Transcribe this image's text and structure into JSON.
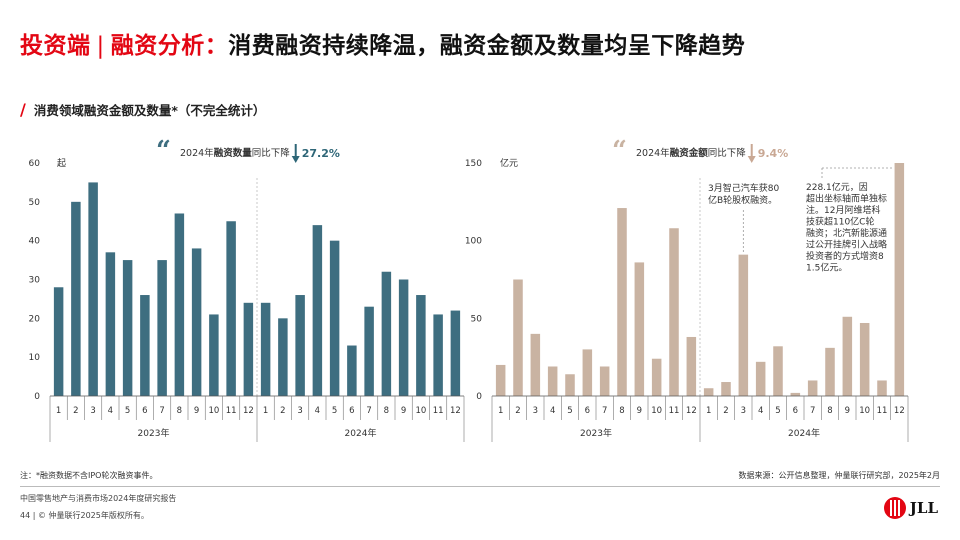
{
  "header": {
    "title_red": "投资端",
    "title_sep": "|",
    "title_red2": "融资分析：",
    "title_rest": "消费融资持续降温，融资金额及数量均呈下降趋势",
    "subtitle": "消费领域融资金额及数量*（不完全统计）"
  },
  "colors": {
    "accent_red": "#e30613",
    "count_bar": "#3e6e80",
    "amount_bar": "#c9b3a2",
    "count_highlight": "#2e6677",
    "amount_highlight": "#c9a894"
  },
  "chart_data": [
    {
      "type": "bar",
      "unit_label": "起",
      "ylim": [
        0,
        60
      ],
      "yticks": [
        0,
        10,
        20,
        30,
        40,
        50,
        60
      ],
      "categories": [
        "1",
        "2",
        "3",
        "4",
        "5",
        "6",
        "7",
        "8",
        "9",
        "10",
        "11",
        "12",
        "1",
        "2",
        "3",
        "4",
        "5",
        "6",
        "7",
        "8",
        "9",
        "10",
        "11",
        "12"
      ],
      "groups": [
        "2023年",
        "2024年"
      ],
      "values": [
        28,
        50,
        55,
        37,
        35,
        26,
        35,
        47,
        38,
        21,
        45,
        24,
        24,
        20,
        26,
        44,
        40,
        13,
        23,
        32,
        30,
        26,
        21,
        22
      ],
      "callout": {
        "prefix": "2024年",
        "bold": "融资数量",
        "suffix": "同比下降",
        "change": "27.2%"
      }
    },
    {
      "type": "bar",
      "unit_label": "亿元",
      "ylim": [
        0,
        150
      ],
      "yticks": [
        0,
        50,
        100,
        150
      ],
      "categories": [
        "1",
        "2",
        "3",
        "4",
        "5",
        "6",
        "7",
        "8",
        "9",
        "10",
        "11",
        "12",
        "1",
        "2",
        "3",
        "4",
        "5",
        "6",
        "7",
        "8",
        "9",
        "10",
        "11",
        "12"
      ],
      "groups": [
        "2023年",
        "2024年"
      ],
      "values": [
        20,
        75,
        40,
        19,
        14,
        30,
        19,
        121,
        86,
        24,
        108,
        38,
        5,
        9,
        91,
        22,
        32,
        2,
        10,
        31,
        51,
        47,
        10,
        150
      ],
      "callout": {
        "prefix": "2024年",
        "bold": "融资金额",
        "suffix": "同比下降",
        "change": "9.4%"
      },
      "annotations": [
        "3月智己汽车获80亿B轮股权融资。",
        "228.1亿元，因超出坐标轴而单独标注。12月阿维塔科技获超110亿C轮融资；北汽新能源通过公开挂牌引入战略投资者的方式增资81.5亿元。"
      ]
    }
  ],
  "notes": {
    "left": "注：*融资数据不含IPO轮次融资事件。",
    "right": "数据来源：公开信息整理，仲量联行研究部，2025年2月"
  },
  "footer": {
    "report": "中国零售地产与消费市场2024年度研究报告",
    "copyright": "44 | © 仲量联行2025年版权所有。"
  },
  "logo": {
    "text": "JLL"
  }
}
